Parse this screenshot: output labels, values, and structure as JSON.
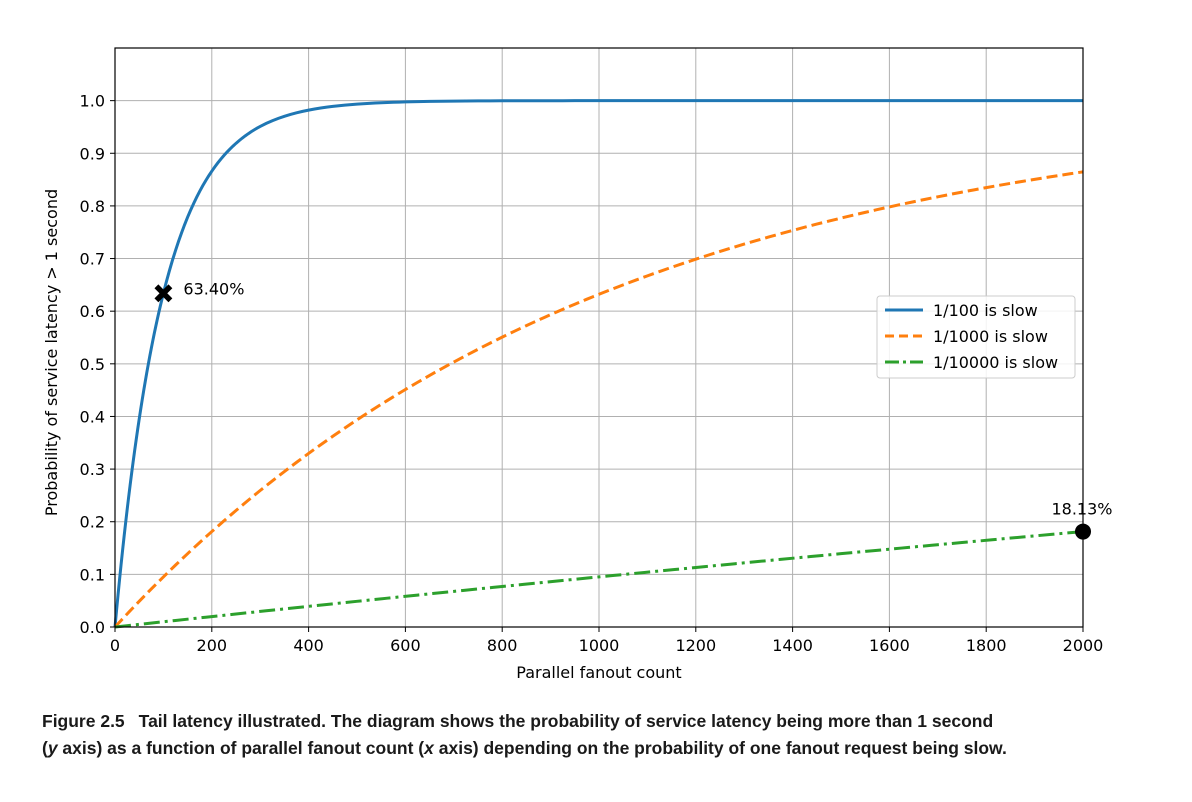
{
  "chart_data": {
    "type": "line",
    "title": "",
    "xlabel": "Parallel fanout count",
    "ylabel": "Probability of service latency > 1 second",
    "xlim": [
      0,
      2000
    ],
    "ylim": [
      0,
      1.1
    ],
    "xticks": [
      0,
      200,
      400,
      600,
      800,
      1000,
      1200,
      1400,
      1600,
      1800,
      2000
    ],
    "xtick_labels": [
      "0",
      "200",
      "400",
      "600",
      "800",
      "1000",
      "1200",
      "1400",
      "1600",
      "1800",
      "2000"
    ],
    "yticks": [
      0,
      0.1,
      0.2,
      0.3,
      0.4,
      0.5,
      0.6,
      0.7,
      0.8,
      0.9,
      1.0
    ],
    "ytick_labels": [
      "0.0",
      "0.1",
      "0.2",
      "0.3",
      "0.4",
      "0.5",
      "0.6",
      "0.7",
      "0.8",
      "0.9",
      "1.0"
    ],
    "grid": true,
    "legend_position": "center-right",
    "series": [
      {
        "name": "1/100 is slow",
        "color": "#1f77b4",
        "style": "solid",
        "x": [
          0,
          25,
          50,
          75,
          100,
          150,
          200,
          250,
          300,
          400,
          500,
          600,
          800,
          1000,
          1500,
          2000
        ],
        "y": [
          0,
          0.2222,
          0.395,
          0.5295,
          0.634,
          0.7785,
          0.866,
          0.9189,
          0.951,
          0.982,
          0.9934,
          0.9976,
          0.9997,
          1.0,
          1.0,
          1.0
        ]
      },
      {
        "name": "1/1000 is slow",
        "color": "#ff7f0e",
        "style": "dashed",
        "x": [
          0,
          100,
          200,
          300,
          400,
          500,
          600,
          700,
          800,
          900,
          1000,
          1200,
          1400,
          1600,
          1800,
          2000
        ],
        "y": [
          0,
          0.0952,
          0.1813,
          0.2593,
          0.3297,
          0.3935,
          0.4512,
          0.5034,
          0.5507,
          0.5934,
          0.6321,
          0.6988,
          0.7534,
          0.7981,
          0.8347,
          0.8647
        ]
      },
      {
        "name": "1/10000 is slow",
        "color": "#2ca02c",
        "style": "dashdot",
        "x": [
          0,
          250,
          500,
          750,
          1000,
          1250,
          1500,
          1750,
          2000
        ],
        "y": [
          0,
          0.0247,
          0.0488,
          0.0723,
          0.0952,
          0.1175,
          0.1393,
          0.1605,
          0.1813
        ]
      }
    ],
    "annotations": [
      {
        "x": 100,
        "y": 0.634,
        "marker": "X",
        "label": "63.40%"
      },
      {
        "x": 2000,
        "y": 0.1813,
        "marker": "o",
        "label": "18.13%"
      }
    ]
  },
  "caption": {
    "figure_label": "Figure 2.5",
    "line1": "Tail latency illustrated. The diagram shows the probability of service latency being more than 1 second",
    "line2_p1": "(",
    "line2_y": "y",
    "line2_p2": " axis) as a function of parallel fanout count (",
    "line2_x": "x",
    "line2_p3": " axis) depending on the probability of one fanout request being slow."
  }
}
